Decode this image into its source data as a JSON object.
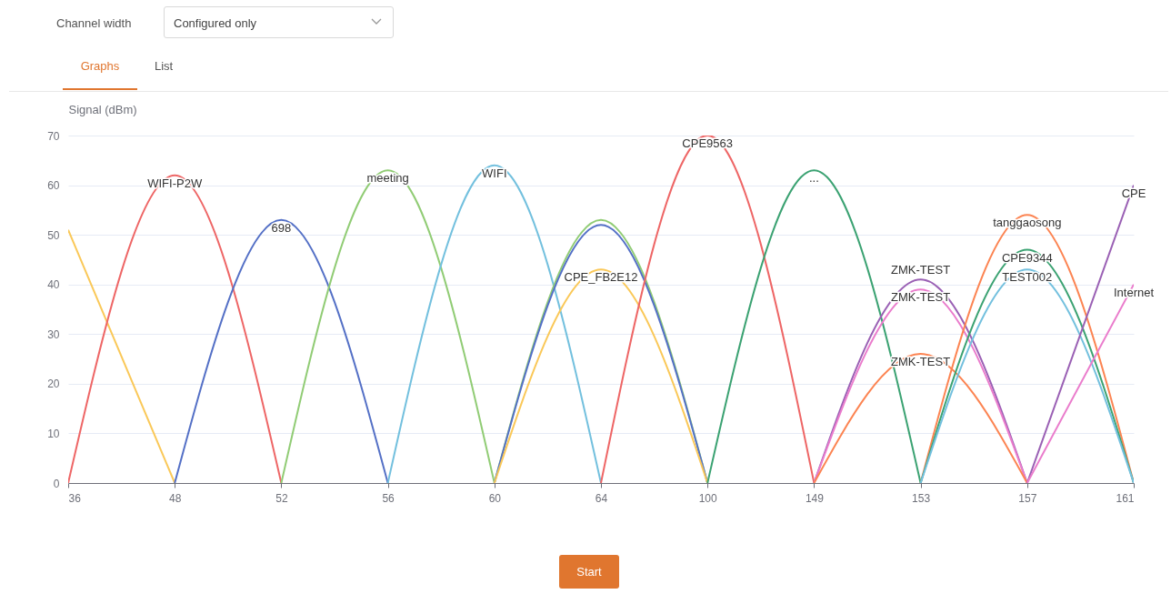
{
  "chart_data": {
    "type": "line",
    "ylabel": "Signal (dBm)",
    "categories": [
      "36",
      "48",
      "52",
      "56",
      "60",
      "64",
      "100",
      "149",
      "153",
      "157",
      "161"
    ],
    "ylim": [
      0,
      70
    ],
    "yticks": [
      0,
      10,
      20,
      30,
      40,
      50,
      60,
      70
    ],
    "grid": "y",
    "series": [
      {
        "color": "#fac858",
        "values": [
          51,
          0,
          null,
          null,
          null,
          null,
          null,
          null,
          null,
          null,
          null
        ]
      },
      {
        "name": "WIFI-P2W",
        "color": "#ee6666",
        "values": [
          0,
          62,
          0,
          null,
          null,
          null,
          null,
          null,
          null,
          null,
          null
        ]
      },
      {
        "name": "698",
        "color": "#5470c6",
        "values": [
          null,
          0,
          53,
          0,
          null,
          null,
          null,
          null,
          null,
          null,
          null
        ]
      },
      {
        "name": "meeting",
        "color": "#91cc75",
        "values": [
          null,
          null,
          0,
          63,
          0,
          null,
          null,
          null,
          null,
          null,
          null
        ]
      },
      {
        "name": "WIFI",
        "color": "#73c0de",
        "values": [
          null,
          null,
          null,
          0,
          64,
          0,
          null,
          null,
          null,
          null,
          null
        ]
      },
      {
        "color": "#91cc75",
        "values": [
          null,
          null,
          null,
          null,
          0,
          53,
          0,
          null,
          null,
          null,
          null
        ]
      },
      {
        "color": "#5470c6",
        "values": [
          null,
          null,
          null,
          null,
          0,
          52,
          0,
          null,
          null,
          null,
          null
        ]
      },
      {
        "name": "CPE_FB2E12",
        "color": "#fac858",
        "values": [
          null,
          null,
          null,
          null,
          0,
          43,
          0,
          null,
          null,
          null,
          null
        ]
      },
      {
        "name": "CPE9563",
        "color": "#ee6666",
        "values": [
          null,
          null,
          null,
          null,
          null,
          0,
          70,
          0,
          null,
          null,
          null
        ]
      },
      {
        "name": "...",
        "color": "#3ba272",
        "values": [
          null,
          null,
          null,
          null,
          null,
          null,
          0,
          63,
          0,
          null,
          null
        ]
      },
      {
        "name": "ZMK-TEST",
        "color": "#9a60b4",
        "values": [
          null,
          null,
          null,
          null,
          null,
          null,
          null,
          0,
          41,
          0,
          null
        ]
      },
      {
        "name": "ZMK-TEST",
        "color": "#ea7ccc",
        "values": [
          null,
          null,
          null,
          null,
          null,
          null,
          null,
          0,
          39,
          0,
          null
        ]
      },
      {
        "name": "ZMK-TEST",
        "color": "#fc8452",
        "values": [
          null,
          null,
          null,
          null,
          null,
          null,
          null,
          0,
          26,
          0,
          null
        ]
      },
      {
        "name": "tanggaosong",
        "color": "#fc8452",
        "values": [
          null,
          null,
          null,
          null,
          null,
          null,
          null,
          null,
          0,
          54,
          0
        ]
      },
      {
        "name": "CPE9344",
        "color": "#3ba272",
        "values": [
          null,
          null,
          null,
          null,
          null,
          null,
          null,
          null,
          0,
          47,
          0
        ]
      },
      {
        "name": "TEST002",
        "color": "#73c0de",
        "values": [
          null,
          null,
          null,
          null,
          null,
          null,
          null,
          null,
          0,
          43,
          0
        ]
      },
      {
        "name": "CPE",
        "color": "#9a60b4",
        "values": [
          null,
          null,
          null,
          null,
          null,
          null,
          null,
          null,
          null,
          0,
          60
        ]
      },
      {
        "name": "Internet",
        "color": "#ea7ccc",
        "values": [
          null,
          null,
          null,
          null,
          null,
          null,
          null,
          null,
          null,
          0,
          40
        ]
      }
    ],
    "annotations": [
      "Channel width",
      "Configured only",
      "Graphs",
      "List",
      "Start"
    ]
  }
}
